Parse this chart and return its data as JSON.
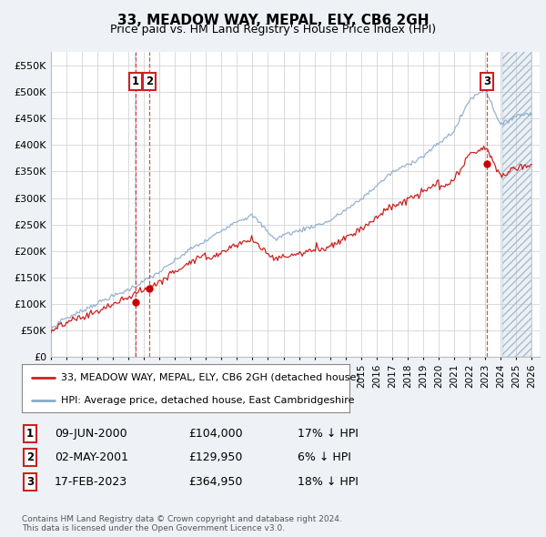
{
  "title": "33, MEADOW WAY, MEPAL, ELY, CB6 2GH",
  "subtitle": "Price paid vs. HM Land Registry's House Price Index (HPI)",
  "ylabel_ticks": [
    "£0",
    "£50K",
    "£100K",
    "£150K",
    "£200K",
    "£250K",
    "£300K",
    "£350K",
    "£400K",
    "£450K",
    "£500K",
    "£550K"
  ],
  "ytick_values": [
    0,
    50000,
    100000,
    150000,
    200000,
    250000,
    300000,
    350000,
    400000,
    450000,
    500000,
    550000
  ],
  "ylim": [
    0,
    575000
  ],
  "xlim_start": 1995.0,
  "xlim_end": 2026.5,
  "sale_dates": [
    2000.44,
    2001.33,
    2023.12
  ],
  "sale_prices": [
    104000,
    129950,
    364950
  ],
  "sale_labels": [
    "1",
    "2",
    "3"
  ],
  "vline_color": "#cc3333",
  "vline_color_1": "#aaaacc",
  "sale_dot_color": "#cc0000",
  "hpi_line_color": "#88aacc",
  "price_line_color": "#cc2222",
  "shade_color": "#c8d8e8",
  "legend_label_price": "33, MEADOW WAY, MEPAL, ELY, CB6 2GH (detached house)",
  "legend_label_hpi": "HPI: Average price, detached house, East Cambridgeshire",
  "table_rows": [
    [
      "1",
      "09-JUN-2000",
      "£104,000",
      "17% ↓ HPI"
    ],
    [
      "2",
      "02-MAY-2001",
      "£129,950",
      "6% ↓ HPI"
    ],
    [
      "3",
      "17-FEB-2023",
      "£364,950",
      "18% ↓ HPI"
    ]
  ],
  "footnote": "Contains HM Land Registry data © Crown copyright and database right 2024.\nThis data is licensed under the Open Government Licence v3.0.",
  "bg_color": "#eef2f6",
  "plot_bg_color": "#ffffff",
  "grid_color": "#cccccc"
}
